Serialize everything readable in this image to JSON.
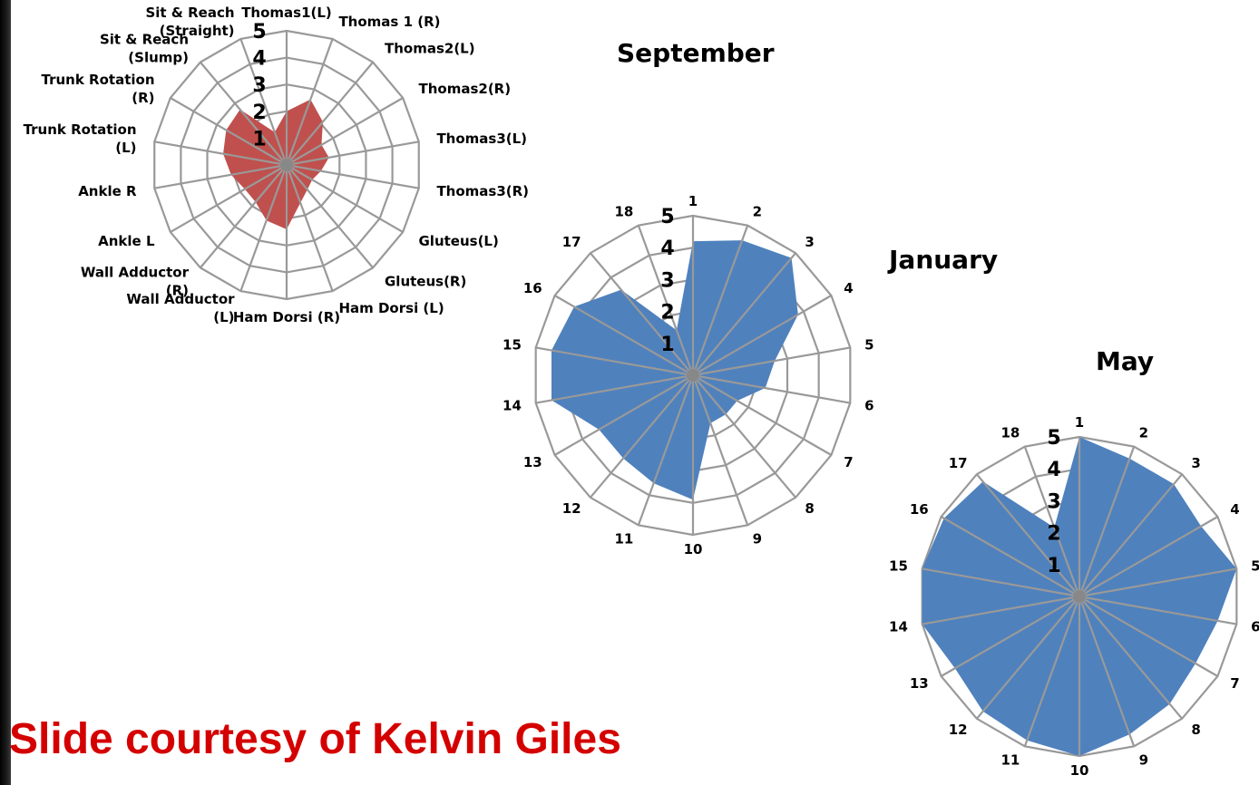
{
  "credit": "Slide courtesy of Kelvin Giles",
  "colors": {
    "red_fill": "#c0504d",
    "blue_fill": "#4f81bd",
    "grid": "#999999",
    "credit": "#d40000"
  },
  "chart_data": [
    {
      "type": "radar",
      "title": "",
      "rmin": 0,
      "rmax": 5,
      "radial_ticks": [
        "1",
        "2",
        "3",
        "4",
        "5"
      ],
      "categories": [
        [
          "Thomas1(L)"
        ],
        [
          "Thomas 1 (R)"
        ],
        [
          "Thomas2(L)"
        ],
        [
          "Thomas2(R)"
        ],
        [
          "Thomas3(L)"
        ],
        [
          "Thomas3(R)"
        ],
        [
          "Gluteus(L)"
        ],
        [
          "Gluteus(R)"
        ],
        [
          "Ham Dorsi (L)"
        ],
        [
          "Ham Dorsi (R)"
        ],
        [
          "Wall Adductor",
          "(L)"
        ],
        [
          "Wall Adductor",
          "(R)"
        ],
        [
          "Ankle L"
        ],
        [
          "Ankle R"
        ],
        [
          "Trunk Rotation",
          "(L)"
        ],
        [
          "Trunk Rotation",
          "(R)"
        ],
        [
          "Sit & Reach",
          "(Slump)"
        ],
        [
          "Sit & Reach",
          "(Straight)"
        ]
      ],
      "series": [
        {
          "values": [
            2,
            2.6,
            2.1,
            1.5,
            1.6,
            1.3,
            1.1,
            1.2,
            1.5,
            2.4,
            2.2,
            1.8,
            1.8,
            2.1,
            2.4,
            2.6,
            2.7,
            1.3
          ]
        }
      ],
      "color_key": "red_fill"
    },
    {
      "type": "radar",
      "title": "September",
      "rmin": 0,
      "rmax": 5,
      "radial_ticks": [
        "1",
        "2",
        "3",
        "4",
        "5"
      ],
      "categories": [
        [
          "1"
        ],
        [
          "2"
        ],
        [
          "3"
        ],
        [
          "4"
        ],
        [
          "5"
        ],
        [
          "6"
        ],
        [
          "7"
        ],
        [
          "8"
        ],
        [
          "9"
        ],
        [
          "10"
        ],
        [
          "11"
        ],
        [
          "12"
        ],
        [
          "13"
        ],
        [
          "14"
        ],
        [
          "15"
        ],
        [
          "16"
        ],
        [
          "17"
        ],
        [
          "18"
        ]
      ],
      "series": [
        {
          "values": [
            4.2,
            4.5,
            4.8,
            3.8,
            2.6,
            2.3,
            1.6,
            1.6,
            1.6,
            3.9,
            3.6,
            3.4,
            3.4,
            4.5,
            4.5,
            4.3,
            3.5,
            1.5
          ]
        }
      ],
      "color_key": "blue_fill"
    },
    {
      "type": "radar",
      "title": "January",
      "rmin": 0,
      "rmax": 5,
      "radial_ticks": [
        "1",
        "2",
        "3",
        "4",
        "5"
      ],
      "categories": [
        [
          "1"
        ],
        [
          "2"
        ],
        [
          "3"
        ],
        [
          "4"
        ],
        [
          "5"
        ],
        [
          "6"
        ],
        [
          "7"
        ],
        [
          "8"
        ],
        [
          "9"
        ],
        [
          "10"
        ],
        [
          "11"
        ],
        [
          "12"
        ],
        [
          "13"
        ],
        [
          "14"
        ],
        [
          "15"
        ],
        [
          "16"
        ],
        [
          "17"
        ],
        [
          "18"
        ]
      ],
      "series": [
        {
          "values": [
            5,
            4.6,
            4.6,
            4.4,
            5,
            4.4,
            4.2,
            4.4,
            4.6,
            5,
            4.8,
            4.7,
            4.5,
            5,
            5,
            4.9,
            4.7,
            2.3
          ]
        }
      ],
      "color_key": "blue_fill"
    },
    {
      "type": "radar",
      "title": "May",
      "categories": [],
      "series": []
    }
  ]
}
